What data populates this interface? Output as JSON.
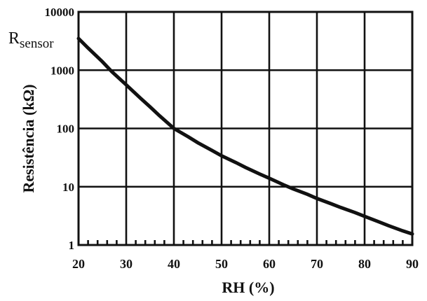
{
  "chart_data": {
    "type": "line",
    "xlabel": "RH (%)",
    "ylabel": "Resistência  (kΩ)",
    "xlim": [
      20,
      90
    ],
    "ylim": [
      1,
      10000
    ],
    "yscale": "log",
    "grid": true,
    "x_ticks": [
      20,
      30,
      40,
      50,
      60,
      70,
      80,
      90
    ],
    "y_ticks": [
      1,
      10,
      100,
      1000,
      10000
    ],
    "x_tick_labels": [
      "20",
      "30",
      "40",
      "50",
      "60",
      "70",
      "80",
      "90"
    ],
    "y_tick_labels": [
      "1",
      "10",
      "100",
      "1000",
      "10000"
    ],
    "annotation": {
      "main": "R",
      "sub": "sensor"
    },
    "series": [
      {
        "x": [
          20,
          22,
          25,
          27,
          30,
          33,
          35,
          37,
          40,
          43,
          45,
          48,
          50,
          53,
          55,
          58,
          60,
          63,
          65,
          68,
          70,
          73,
          75,
          78,
          80,
          83,
          85,
          88,
          90
        ],
        "y": [
          3500,
          2400,
          1400,
          940,
          560,
          330,
          235,
          165,
          100,
          72,
          57,
          42,
          34,
          26,
          21.5,
          16.5,
          14,
          10.8,
          9.2,
          7.4,
          6.3,
          5.1,
          4.4,
          3.6,
          3.1,
          2.5,
          2.15,
          1.75,
          1.55
        ]
      }
    ]
  }
}
